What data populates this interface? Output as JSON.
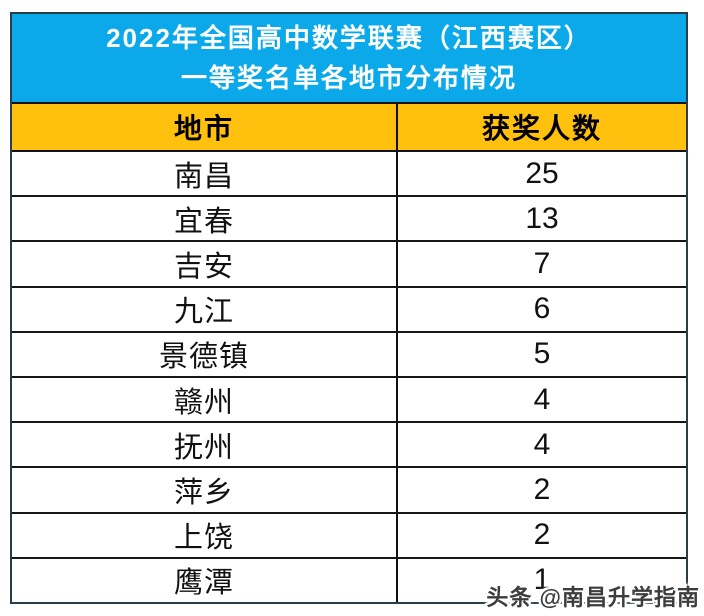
{
  "banner": {
    "line1": "2022年全国高中数学联赛（江西赛区）",
    "line2": "一等奖名单各地市分布情况"
  },
  "table": {
    "headers": [
      "地市",
      "获奖人数"
    ],
    "rows": [
      {
        "city": "南昌",
        "count": "25"
      },
      {
        "city": "宜春",
        "count": "13"
      },
      {
        "city": "吉安",
        "count": "7"
      },
      {
        "city": "九江",
        "count": "6"
      },
      {
        "city": "景德镇",
        "count": "5"
      },
      {
        "city": "赣州",
        "count": "4"
      },
      {
        "city": "抚州",
        "count": "4"
      },
      {
        "city": "萍乡",
        "count": "2"
      },
      {
        "city": "上饶",
        "count": "2"
      },
      {
        "city": "鹰潭",
        "count": "1"
      }
    ]
  },
  "watermark": {
    "text": "头条 @南昌升学指南"
  },
  "colors": {
    "banner_bg": "#0BA9EA",
    "banner_text": "#FFFFFF",
    "header_bg": "#FFC10D",
    "header_text": "#000000",
    "body_text": "#111111",
    "border": "#101010",
    "outer_border": "#2B3D49",
    "watermark_text": "#3D3D3D"
  },
  "chart_data": {
    "type": "table",
    "title": "2022年全国高中数学联赛（江西赛区）一等奖名单各地市分布情况",
    "columns": [
      "地市",
      "获奖人数"
    ],
    "categories": [
      "南昌",
      "宜春",
      "吉安",
      "九江",
      "景德镇",
      "赣州",
      "抚州",
      "萍乡",
      "上饶",
      "鹰潭"
    ],
    "values": [
      25,
      13,
      7,
      6,
      5,
      4,
      4,
      2,
      2,
      1
    ]
  }
}
